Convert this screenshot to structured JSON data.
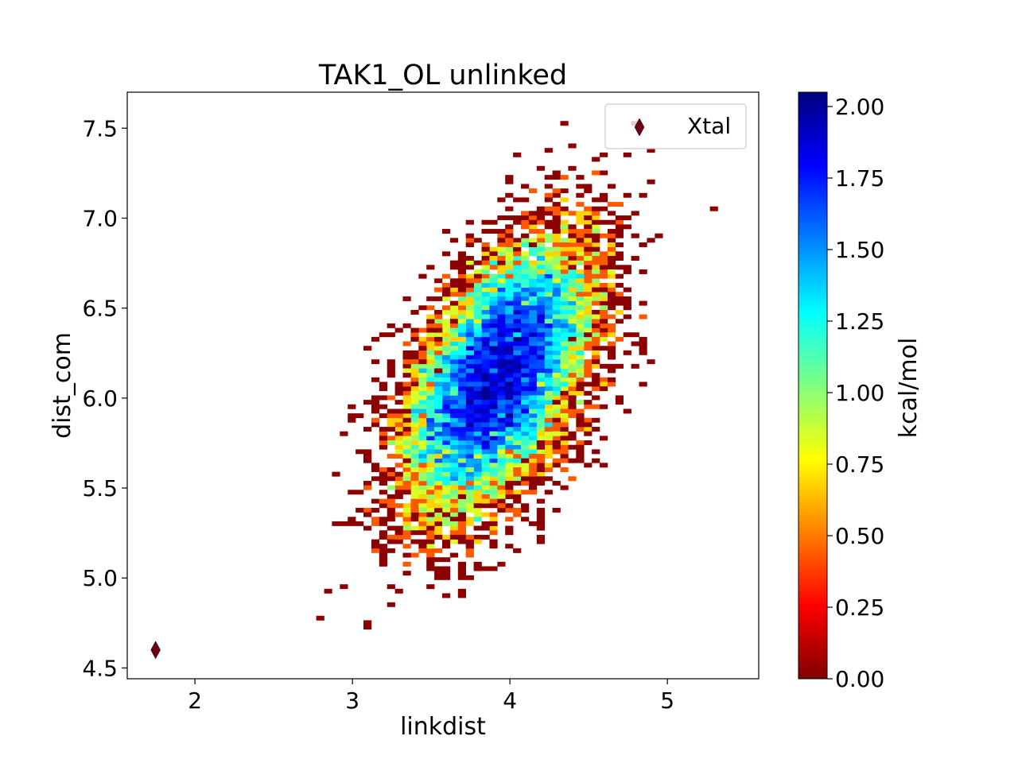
{
  "chart_data": {
    "type": "heatmap",
    "title": "TAK1_OL unlinked",
    "xlabel": "linkdist",
    "ylabel": "dist_com",
    "xlim": [
      1.57,
      5.58
    ],
    "ylim": [
      4.44,
      7.7
    ],
    "xticks": [
      2,
      3,
      4,
      5
    ],
    "xtick_labels": [
      "2",
      "3",
      "4",
      "5"
    ],
    "yticks": [
      4.5,
      5.0,
      5.5,
      6.0,
      6.5,
      7.0,
      7.5
    ],
    "ytick_labels": [
      "4.5",
      "5.0",
      "5.5",
      "6.0",
      "6.5",
      "7.0",
      "7.5"
    ],
    "grid": false,
    "bin_width": [
      0.05,
      0.025
    ],
    "density": {
      "center": [
        3.93,
        6.12
      ],
      "sigma": [
        0.3,
        0.38
      ],
      "correlation": 0.55,
      "n_samples": 11000,
      "seed": 7
    },
    "colormap": "jet",
    "colorbar": {
      "label": "kcal/mol",
      "min": 0.0,
      "max": 2.05,
      "ticks": [
        0.0,
        0.25,
        0.5,
        0.75,
        1.0,
        1.25,
        1.5,
        1.75,
        2.0
      ],
      "tick_labels": [
        "0.00",
        "0.25",
        "0.50",
        "0.75",
        "1.00",
        "1.25",
        "1.50",
        "1.75",
        "2.00"
      ]
    },
    "series": [
      {
        "name": "Xtal",
        "type": "scatter",
        "marker": "diamond",
        "color": "#6b0019",
        "x": [
          1.75
        ],
        "y": [
          4.6
        ]
      }
    ],
    "legend": {
      "placement": "top-right",
      "entries": [
        "Xtal"
      ]
    }
  }
}
